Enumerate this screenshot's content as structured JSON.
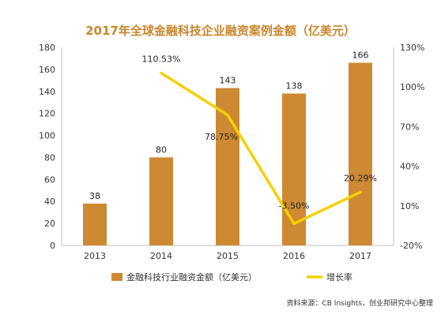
{
  "chart_data": {
    "type": "bar+line",
    "title": "2017年全球金融科技企业融资案例金额（亿美元）",
    "categories": [
      "2013",
      "2014",
      "2015",
      "2016",
      "2017"
    ],
    "series": [
      {
        "name": "金融科技行业融资金额（亿美元）",
        "type": "bar",
        "axis": "left",
        "values": [
          38,
          80,
          143,
          138,
          166
        ],
        "labels": [
          "38",
          "80",
          "143",
          "138",
          "166"
        ]
      },
      {
        "name": "增长率",
        "type": "line",
        "axis": "right",
        "values": [
          null,
          110.53,
          78.75,
          -3.5,
          20.29
        ],
        "labels": [
          "",
          "110.53%",
          "78.75%",
          "-3.50%",
          "20.29%"
        ]
      }
    ],
    "y_left": {
      "min": 0,
      "max": 180,
      "ticks": [
        "0",
        "20",
        "40",
        "60",
        "80",
        "100",
        "120",
        "140",
        "160",
        "180"
      ]
    },
    "y_right": {
      "min": -20,
      "max": 130,
      "ticks": [
        "-20%",
        "10%",
        "40%",
        "70%",
        "100%",
        "130%"
      ]
    },
    "grid": false,
    "legend_position": "bottom",
    "colors": {
      "bar": "#CD8A33",
      "line": "#F5D000",
      "title": "#C9862B"
    }
  },
  "source_note": "资料来源：CB Insights，创业邦研究中心整理"
}
